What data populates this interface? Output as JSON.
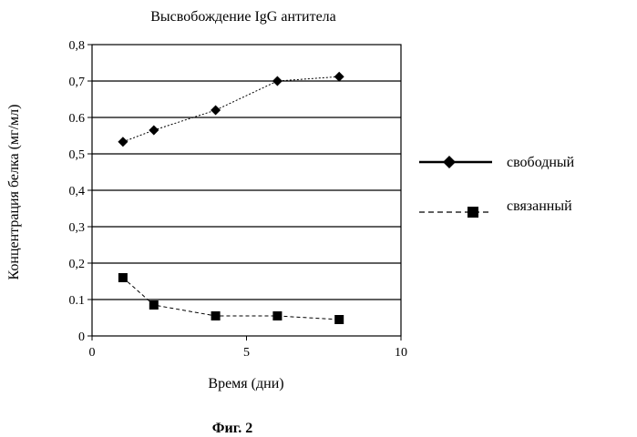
{
  "chart_data": {
    "type": "line",
    "title": "Высвобождение IgG антитела",
    "xlabel": "Время (дни)",
    "ylabel": "Концентрация белка (мг/мл)",
    "xlim": [
      0,
      10
    ],
    "ylim": [
      0,
      0.8
    ],
    "x_ticks": [
      "0",
      "5",
      "10"
    ],
    "y_ticks": [
      "0",
      "0.1",
      "0,2",
      "0,3",
      "0,4",
      "0,5",
      "0.6",
      "0,7",
      "0,8"
    ],
    "grid": "horizontal",
    "legend_position": "right",
    "series": [
      {
        "name": "свободный",
        "marker": "diamond",
        "line_style": "dotted",
        "x": [
          1,
          2,
          4,
          6,
          8
        ],
        "values": [
          0.533,
          0.565,
          0.62,
          0.7,
          0.712
        ]
      },
      {
        "name": "связанный",
        "marker": "square",
        "line_style": "dashed",
        "x": [
          1,
          2,
          4,
          6,
          8
        ],
        "values": [
          0.16,
          0.085,
          0.055,
          0.055,
          0.045
        ]
      }
    ]
  },
  "caption": "Фиг. 2"
}
